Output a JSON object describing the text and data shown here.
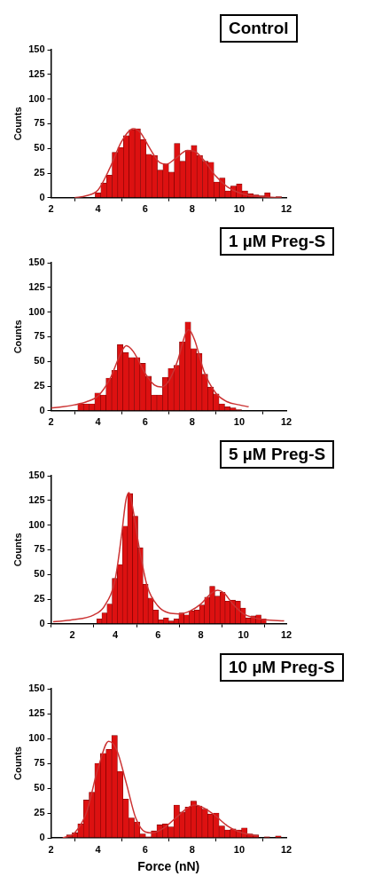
{
  "chart_data": [
    {
      "type": "histogram",
      "title": "Control",
      "ylabel": "Counts",
      "xlim": [
        2,
        12
      ],
      "ylim": [
        0,
        150
      ],
      "xticks": [
        2,
        4,
        6,
        8,
        10,
        12
      ],
      "yticks": [
        0,
        25,
        50,
        75,
        100,
        125,
        150
      ],
      "series": [
        {
          "type": "histogram",
          "color": "#dd1111",
          "bins": [
            3.88,
            4.12,
            4.36,
            4.6,
            4.84,
            5.08,
            5.32,
            5.56,
            5.8,
            6.04,
            6.28,
            6.52,
            6.76,
            7.0,
            7.24,
            7.48,
            7.72,
            7.96,
            8.2,
            8.44,
            8.68,
            8.92,
            9.16,
            9.4,
            9.64,
            9.88,
            10.12,
            10.36,
            10.6,
            10.84,
            11.08,
            11.32,
            11.56,
            11.8
          ],
          "values": [
            5,
            15,
            23,
            46,
            51,
            63,
            69,
            70,
            59,
            44,
            43,
            28,
            34,
            26,
            55,
            37,
            48,
            53,
            43,
            37,
            36,
            16,
            20,
            7,
            12,
            14,
            7,
            4,
            3,
            2,
            5,
            0,
            1
          ]
        },
        {
          "type": "line",
          "color": "#cc3333",
          "x": [
            3.0,
            3.5,
            4.0,
            4.5,
            5.0,
            5.5,
            5.8,
            6.2,
            6.6,
            6.9,
            7.3,
            7.8,
            8.1,
            8.5,
            9.0,
            9.5,
            10.0,
            10.5,
            11.0,
            11.8
          ],
          "values": [
            0,
            2,
            8,
            30,
            57,
            70,
            66,
            50,
            36,
            34,
            40,
            48,
            47,
            38,
            22,
            11,
            5,
            2,
            1,
            0
          ]
        }
      ]
    },
    {
      "type": "histogram",
      "title": "1 µM Preg-S",
      "ylabel": "Counts",
      "xlim": [
        2,
        12
      ],
      "ylim": [
        0,
        150
      ],
      "xticks": [
        2,
        4,
        6,
        8,
        10,
        12
      ],
      "yticks": [
        0,
        25,
        50,
        75,
        100,
        125,
        150
      ],
      "series": [
        {
          "type": "histogram",
          "color": "#dd1111",
          "bins": [
            3.14,
            3.38,
            3.62,
            3.86,
            4.1,
            4.34,
            4.58,
            4.82,
            5.06,
            5.3,
            5.54,
            5.78,
            6.02,
            6.26,
            6.5,
            6.74,
            6.98,
            7.22,
            7.46,
            7.7,
            7.94,
            8.18,
            8.42,
            8.66,
            8.9,
            9.14,
            9.38,
            9.62,
            9.86,
            10.1
          ],
          "values": [
            7,
            7,
            7,
            18,
            16,
            33,
            41,
            67,
            59,
            54,
            54,
            48,
            35,
            16,
            16,
            34,
            43,
            46,
            70,
            90,
            63,
            58,
            37,
            24,
            17,
            7,
            4,
            3,
            1
          ]
        },
        {
          "type": "line",
          "color": "#cc3333",
          "x": [
            2.0,
            2.5,
            3.0,
            3.5,
            4.0,
            4.5,
            5.0,
            5.2,
            5.5,
            6.0,
            6.4,
            6.7,
            7.0,
            7.4,
            7.7,
            7.85,
            8.1,
            8.5,
            9.0,
            9.5,
            10.0,
            10.4
          ],
          "values": [
            3,
            4,
            6,
            9,
            15,
            32,
            60,
            66,
            60,
            38,
            26,
            24,
            30,
            52,
            77,
            82,
            72,
            40,
            18,
            9,
            6,
            4
          ]
        }
      ]
    },
    {
      "type": "histogram",
      "title": "5 µM Preg-S",
      "ylabel": "Counts",
      "xlim": [
        1,
        12
      ],
      "ylim": [
        0,
        150
      ],
      "xticks": [
        2,
        4,
        6,
        8,
        10,
        12
      ],
      "yticks": [
        0,
        25,
        50,
        75,
        100,
        125,
        150
      ],
      "series": [
        {
          "type": "histogram",
          "color": "#dd1111",
          "bins": [
            3.14,
            3.38,
            3.62,
            3.86,
            4.1,
            4.34,
            4.58,
            4.82,
            5.06,
            5.3,
            5.54,
            5.78,
            6.02,
            6.26,
            6.5,
            6.74,
            6.98,
            7.22,
            7.46,
            7.7,
            7.94,
            8.18,
            8.42,
            8.66,
            8.9,
            9.14,
            9.38,
            9.62,
            9.86,
            10.1,
            10.34,
            10.58,
            10.82,
            11.06
          ],
          "values": [
            5,
            11,
            20,
            46,
            60,
            99,
            132,
            109,
            77,
            40,
            26,
            14,
            4,
            6,
            3,
            5,
            11,
            9,
            13,
            14,
            19,
            27,
            38,
            28,
            32,
            23,
            24,
            23,
            16,
            6,
            8,
            9,
            5
          ]
        },
        {
          "type": "line",
          "color": "#cc3333",
          "x": [
            1.1,
            2.0,
            3.0,
            3.5,
            4.0,
            4.3,
            4.5,
            4.65,
            4.8,
            5.1,
            5.5,
            6.0,
            6.5,
            7.0,
            7.5,
            8.0,
            8.5,
            8.8,
            9.1,
            9.5,
            10.0,
            10.5,
            11.0,
            11.9
          ],
          "values": [
            2,
            4,
            9,
            18,
            45,
            90,
            125,
            133,
            120,
            80,
            38,
            18,
            11,
            10,
            13,
            20,
            31,
            34,
            31,
            20,
            10,
            6,
            4,
            3
          ]
        }
      ]
    },
    {
      "type": "histogram",
      "title": "10 µM Preg-S",
      "xlabel": "Force (nN)",
      "ylabel": "Counts",
      "xlim": [
        2,
        12
      ],
      "ylim": [
        0,
        150
      ],
      "xticks": [
        2,
        4,
        6,
        8,
        10,
        12
      ],
      "yticks": [
        0,
        25,
        50,
        75,
        100,
        125,
        150
      ],
      "series": [
        {
          "type": "histogram",
          "color": "#dd1111",
          "bins": [
            2.66,
            2.9,
            3.14,
            3.38,
            3.62,
            3.86,
            4.1,
            4.34,
            4.58,
            4.82,
            5.06,
            5.3,
            5.54,
            5.78,
            6.02,
            6.26,
            6.5,
            6.74,
            6.98,
            7.22,
            7.46,
            7.7,
            7.94,
            8.18,
            8.42,
            8.66,
            8.9,
            9.14,
            9.38,
            9.62,
            9.86,
            10.1,
            10.34,
            10.58,
            10.82,
            11.06,
            11.3,
            11.54,
            11.78
          ],
          "values": [
            3,
            5,
            14,
            38,
            46,
            75,
            85,
            89,
            103,
            67,
            39,
            20,
            16,
            4,
            1,
            7,
            13,
            14,
            11,
            33,
            26,
            31,
            37,
            32,
            29,
            24,
            25,
            12,
            8,
            9,
            8,
            10,
            4,
            3,
            0,
            1,
            0,
            2
          ]
        },
        {
          "type": "line",
          "color": "#cc3333",
          "x": [
            2.5,
            3.0,
            3.5,
            4.0,
            4.45,
            4.8,
            5.2,
            5.6,
            6.0,
            6.3,
            6.8,
            7.3,
            7.8,
            8.1,
            8.5,
            9.0,
            9.5,
            10.0,
            10.5,
            10.8
          ],
          "values": [
            0,
            5,
            25,
            70,
            97,
            88,
            55,
            20,
            6,
            5,
            10,
            20,
            30,
            33,
            30,
            22,
            12,
            6,
            3,
            2
          ]
        }
      ]
    }
  ]
}
